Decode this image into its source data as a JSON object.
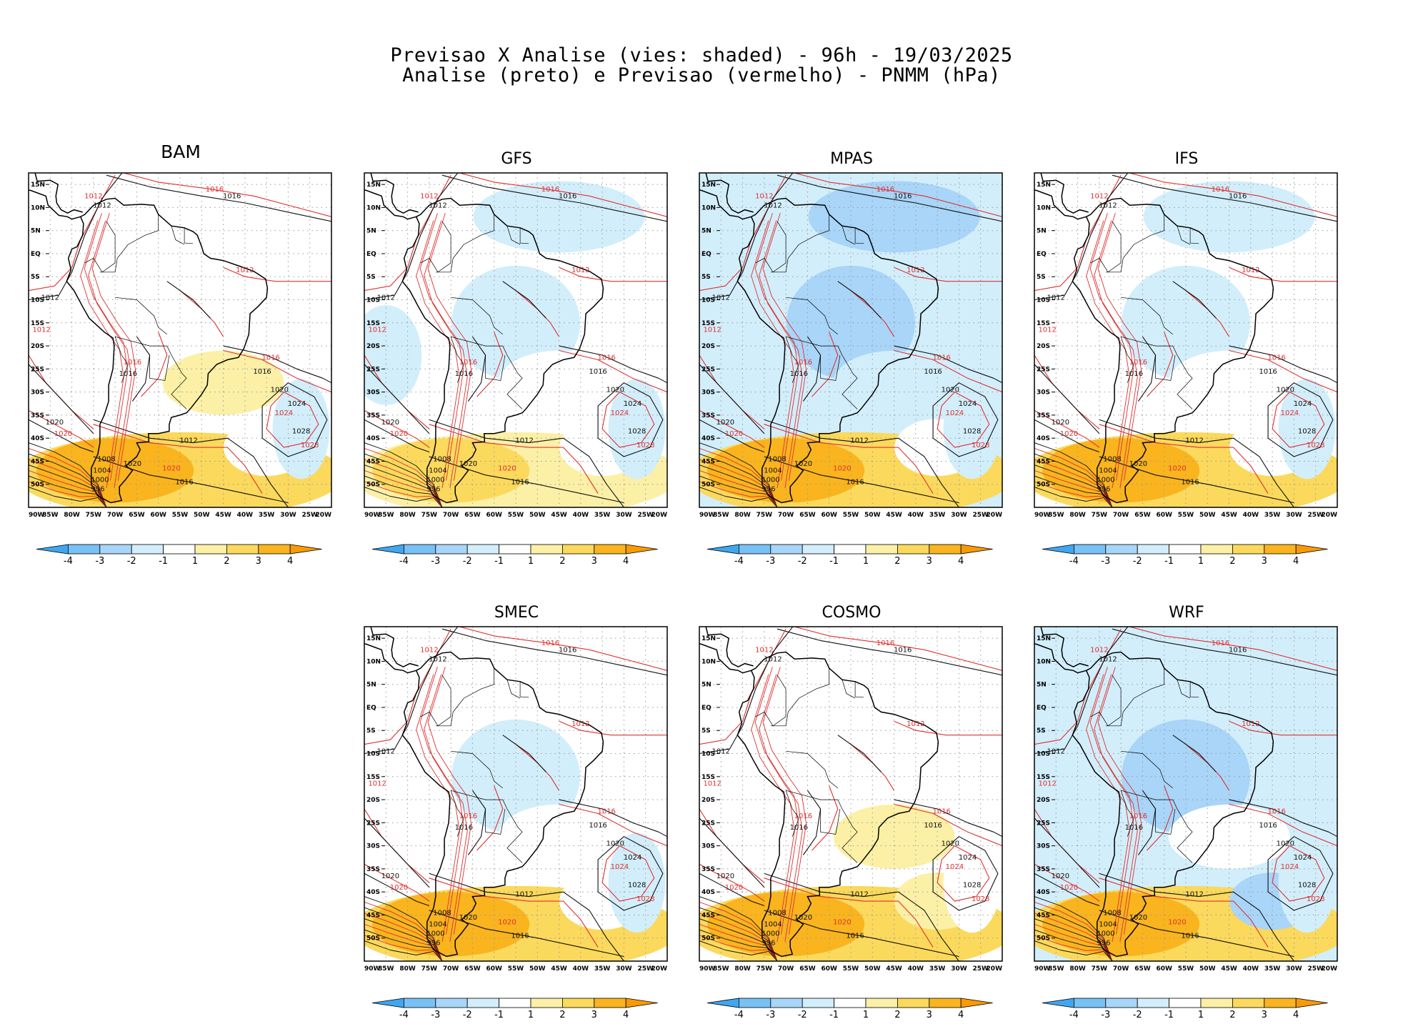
{
  "header": {
    "line1": "Previsao X Analise (vies: shaded) - 96h - 19/03/2025",
    "line2": "Analise (preto) e Previsao (vermelho) - PNMM (hPa)"
  },
  "panels": [
    {
      "name": "BAM",
      "bias": [
        0.2,
        0.8,
        1.5,
        2.5,
        0.3,
        -1.0
      ]
    },
    {
      "name": "GFS",
      "bias": [
        -1.3,
        -1.8,
        -0.6,
        1.8,
        0.5,
        -1.5
      ]
    },
    {
      "name": "MPAS",
      "bias": [
        -2.0,
        -2.2,
        -1.2,
        2.2,
        0.4,
        -1.4
      ]
    },
    {
      "name": "IFS",
      "bias": [
        -1.2,
        -1.0,
        0.5,
        2.2,
        0.6,
        -1.6
      ]
    },
    {
      "name": "SMEC",
      "bias": [
        -0.8,
        -1.0,
        0.4,
        2.4,
        0.8,
        -1.8
      ]
    },
    {
      "name": "COSMO",
      "bias": [
        -0.6,
        -0.8,
        1.6,
        2.8,
        1.2,
        -0.8
      ]
    },
    {
      "name": "WRF",
      "bias": [
        -1.8,
        -2.0,
        -0.6,
        2.2,
        -2.5,
        -1.8
      ]
    }
  ],
  "axes": {
    "lat_labels": [
      "15N",
      "10N",
      "5N",
      "EQ",
      "5S",
      "10S",
      "15S",
      "20S",
      "25S",
      "30S",
      "35S",
      "40S",
      "45S",
      "50S"
    ],
    "lon_labels": [
      "90W",
      "85W",
      "80W",
      "75W",
      "70W",
      "65W",
      "60W",
      "55W",
      "50W",
      "45W",
      "40W",
      "35W",
      "30W",
      "25W",
      "20W"
    ]
  },
  "isobars": {
    "red": [
      "1012",
      "1016",
      "1020",
      "1024",
      "1028",
      "1008",
      "1004"
    ],
    "black": [
      "1012",
      "1016",
      "1020",
      "1024",
      "1028",
      "1008",
      "1004",
      "1000",
      "996"
    ]
  },
  "colorbar": {
    "labels": [
      "-4",
      "-3",
      "-2",
      "-1",
      "1",
      "2",
      "3",
      "4"
    ],
    "colors": [
      "#3fa6f0",
      "#78c1f5",
      "#a8d5f8",
      "#d2eefb",
      "#ffffff",
      "#fbf0a6",
      "#fbd95c",
      "#f9b41e",
      "#f99a05"
    ]
  }
}
